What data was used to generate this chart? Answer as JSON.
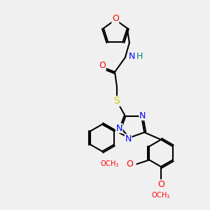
{
  "bg_color": "#f0f0f0",
  "bond_color": "#000000",
  "atom_colors": {
    "O": "#ff0000",
    "N": "#0000ff",
    "S": "#cccc00",
    "H": "#008080",
    "C": "#000000"
  },
  "font_size": 9,
  "line_width": 1.5
}
